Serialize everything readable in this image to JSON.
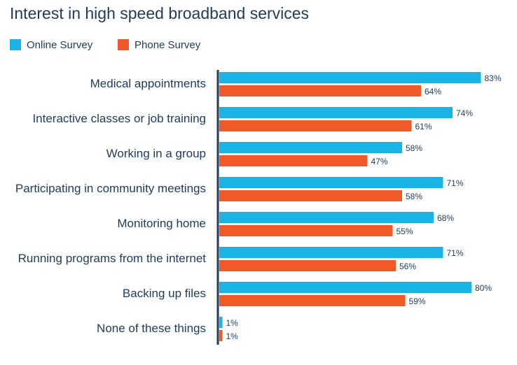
{
  "title": "Interest in high speed broadband services",
  "colors": {
    "online": "#1ab3e6",
    "phone": "#f05a28",
    "axis": "#1f3a5a",
    "text": "#1f3a5a"
  },
  "chart_data": {
    "type": "bar",
    "orientation": "horizontal",
    "title": "Interest in high speed broadband services",
    "xlabel": "",
    "ylabel": "",
    "xlim": [
      0,
      100
    ],
    "grid": false,
    "legend_position": "top-left",
    "categories": [
      "Medical appointments",
      "Interactive classes or job training",
      "Working in a group",
      "Participating in community meetings",
      "Monitoring home",
      "Running programs from the internet",
      "Backing up files",
      "None of these things"
    ],
    "series": [
      {
        "name": "Online Survey",
        "values": [
          83,
          74,
          58,
          71,
          68,
          71,
          80,
          1
        ],
        "labels": [
          "83%",
          "74%",
          "58%",
          "71%",
          "68%",
          "71%",
          "80%",
          "1%"
        ]
      },
      {
        "name": "Phone Survey",
        "values": [
          64,
          61,
          47,
          58,
          55,
          56,
          59,
          1
        ],
        "labels": [
          "64%",
          "61%",
          "47%",
          "58%",
          "55%",
          "56%",
          "59%",
          "1%"
        ]
      }
    ]
  }
}
